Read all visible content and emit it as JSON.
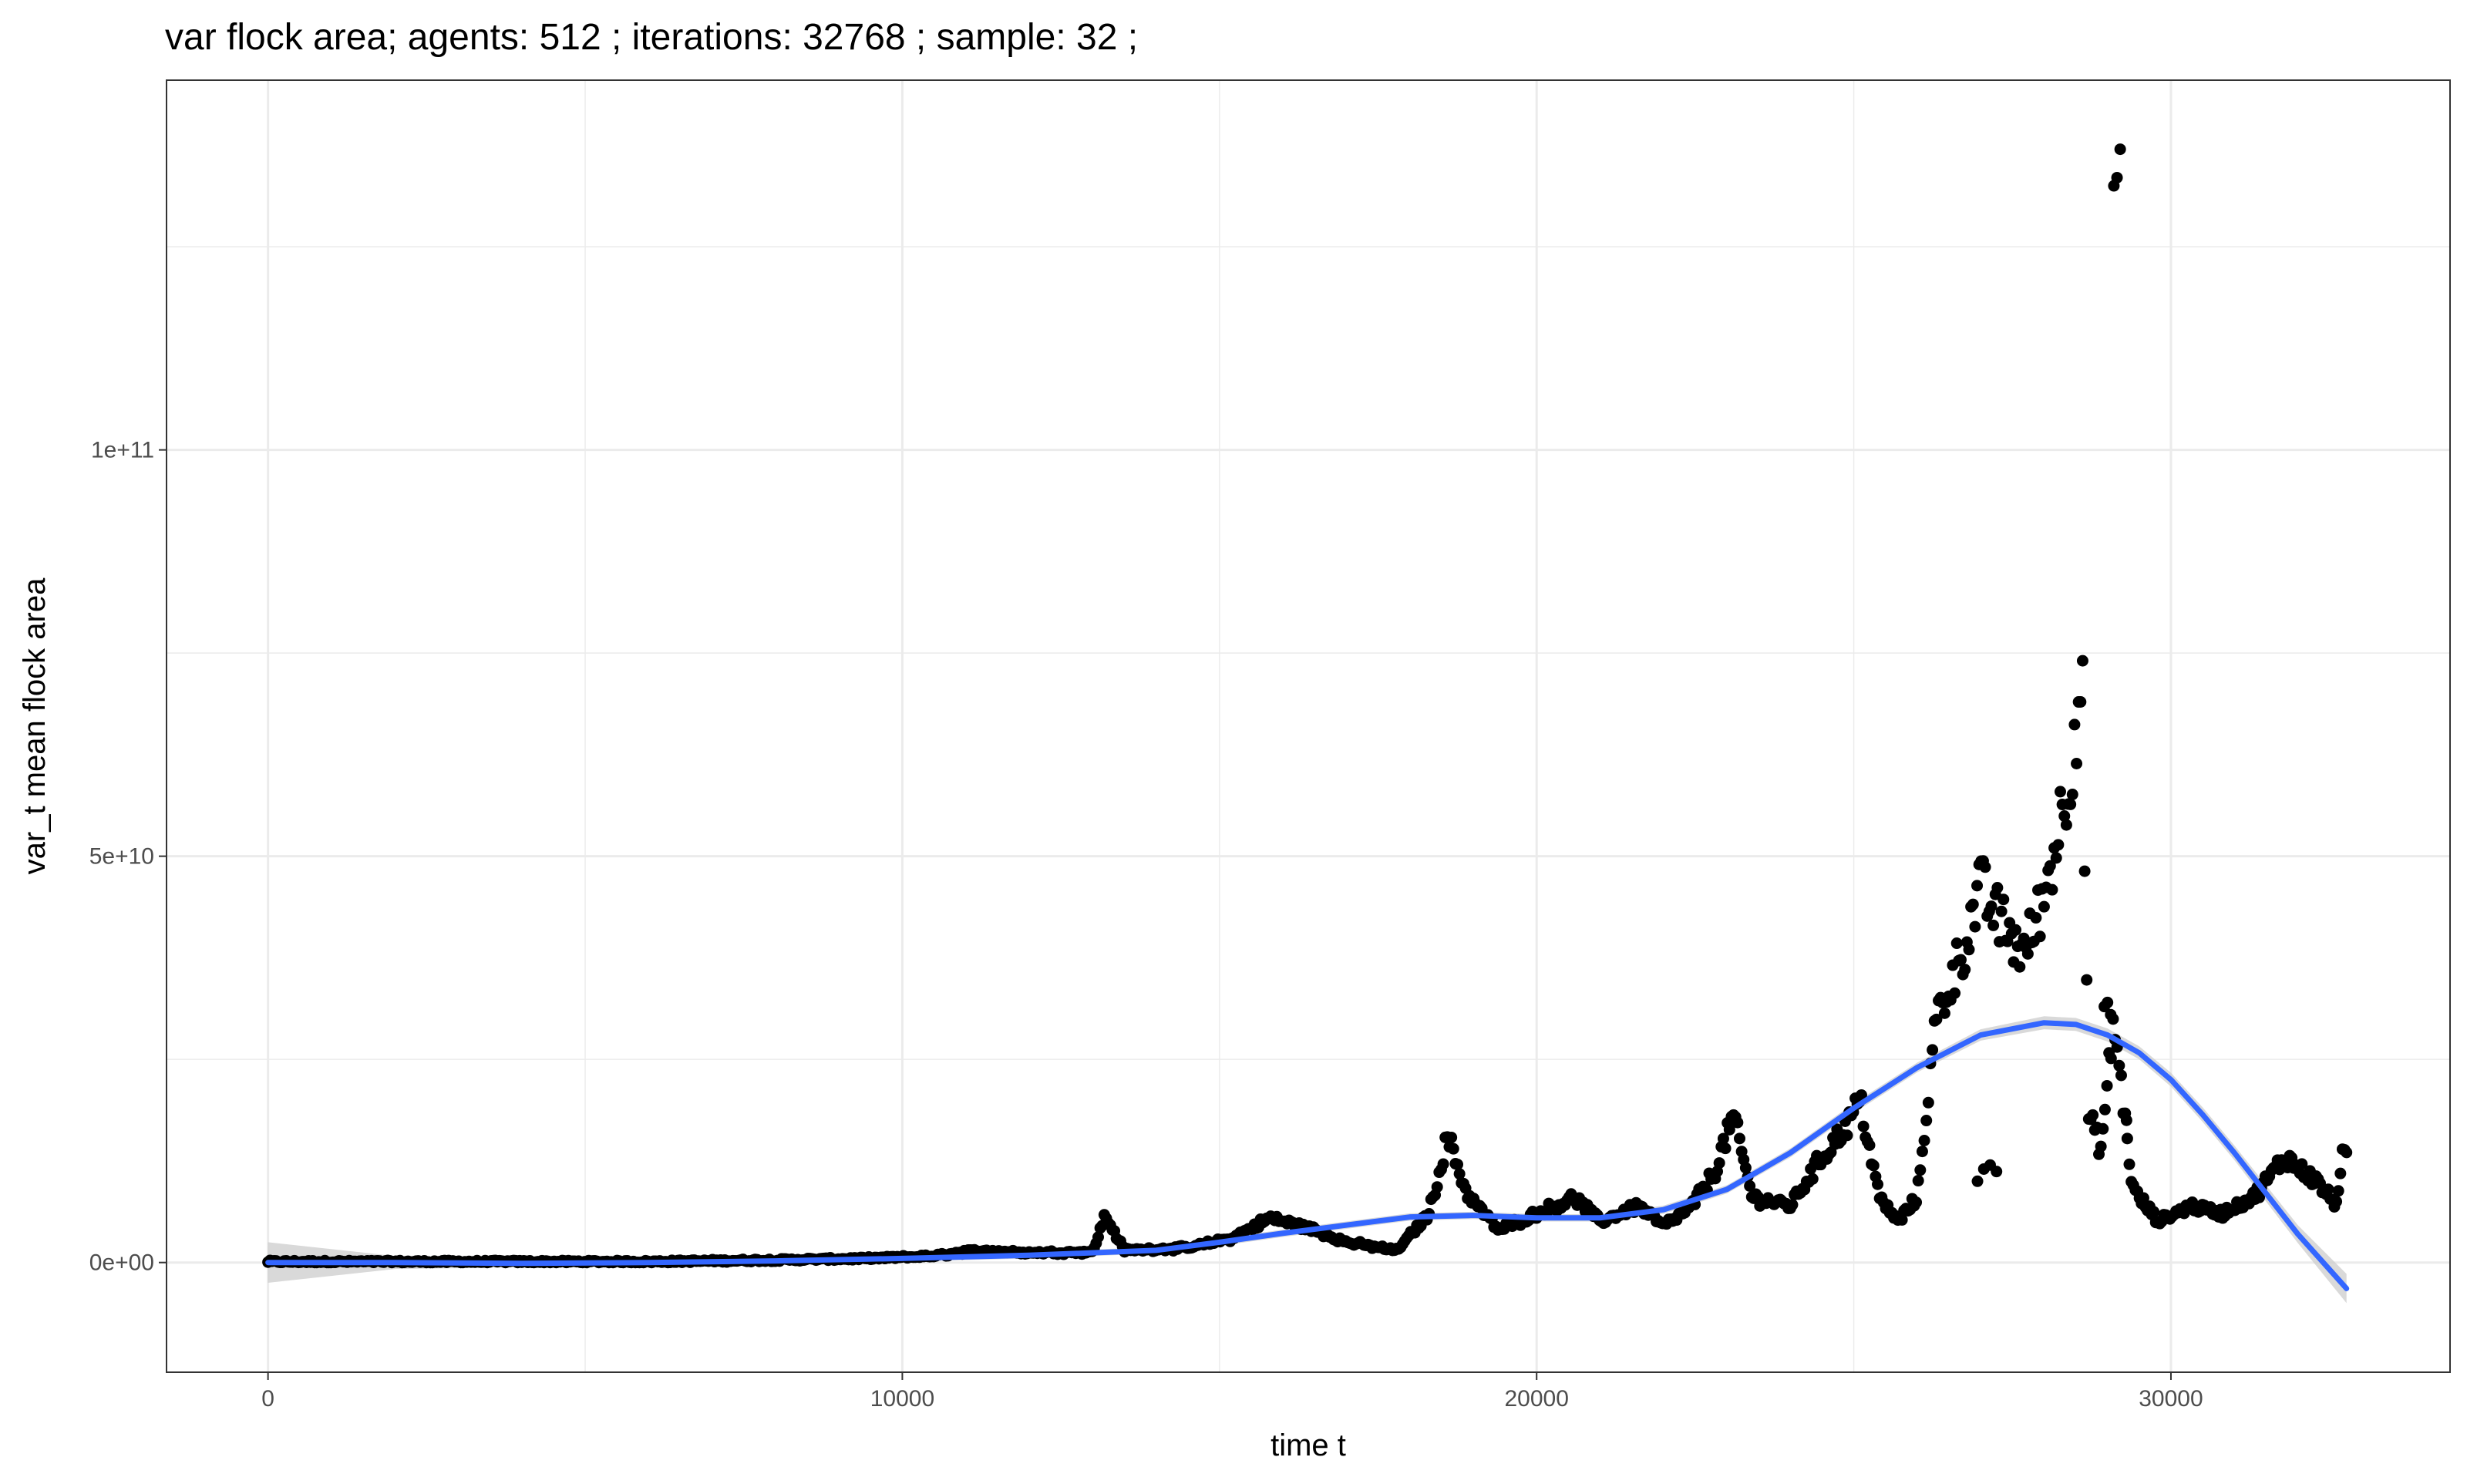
{
  "chart_data": {
    "type": "scatter",
    "title": "var flock area; agents: 512 ; iterations: 32768 ; sample: 32 ;",
    "xlabel": "time t",
    "ylabel": "var_t mean flock area",
    "xlim": [
      -1600,
      34400
    ],
    "ylim": [
      -13500000000,
      145500000000
    ],
    "x_ticks": [
      0,
      10000,
      20000,
      30000
    ],
    "x_tick_labels": [
      "0",
      "10000",
      "20000",
      "30000"
    ],
    "y_ticks": [
      0,
      50000000000,
      100000000000
    ],
    "y_tick_labels": [
      "0e+00",
      "5e+10",
      "1e+11"
    ],
    "x_minor_ticks": [
      5000,
      15000,
      25000
    ],
    "y_minor_ticks": [
      25000000000,
      75000000000,
      125000000000
    ],
    "grid": true,
    "legend": "none",
    "colors": {
      "points": "#000000",
      "smooth_line": "#3366ff",
      "confidence_band": "#cccccc",
      "grid": "#ebebeb",
      "panel_border": "#333333"
    },
    "anchors": [
      [
        0,
        100000000
      ],
      [
        2000,
        100000000
      ],
      [
        4000,
        100000000
      ],
      [
        6000,
        100000000
      ],
      [
        8000,
        300000000
      ],
      [
        9500,
        500000000
      ],
      [
        10500,
        800000000
      ],
      [
        11200,
        1500000000
      ],
      [
        12000,
        1200000000
      ],
      [
        13000,
        1300000000
      ],
      [
        13200,
        5800000000
      ],
      [
        13500,
        1500000000
      ],
      [
        14500,
        1800000000
      ],
      [
        15200,
        3000000000
      ],
      [
        15800,
        5500000000
      ],
      [
        16500,
        4000000000
      ],
      [
        17000,
        2500000000
      ],
      [
        17800,
        1500000000
      ],
      [
        18300,
        6000000000
      ],
      [
        18600,
        15500000000
      ],
      [
        18900,
        8500000000
      ],
      [
        19400,
        4000000000
      ],
      [
        20000,
        6000000000
      ],
      [
        20600,
        8000000000
      ],
      [
        21000,
        5000000000
      ],
      [
        21600,
        7000000000
      ],
      [
        22000,
        4500000000
      ],
      [
        22400,
        6500000000
      ],
      [
        22800,
        11000000000
      ],
      [
        23100,
        18000000000
      ],
      [
        23400,
        8000000000
      ],
      [
        24000,
        7000000000
      ],
      [
        24500,
        13000000000
      ],
      [
        24900,
        17000000000
      ],
      [
        25100,
        20000000000
      ],
      [
        25400,
        8000000000
      ],
      [
        25700,
        5000000000
      ],
      [
        26000,
        8000000000
      ],
      [
        26300,
        30000000000
      ],
      [
        26700,
        38000000000
      ],
      [
        27000,
        46000000000
      ],
      [
        27300,
        42000000000
      ],
      [
        27700,
        38000000000
      ],
      [
        28000,
        45000000000
      ],
      [
        28400,
        60000000000
      ],
      [
        28600,
        73000000000
      ],
      [
        28700,
        18000000000
      ],
      [
        28900,
        14000000000
      ],
      [
        29100,
        30000000000
      ],
      [
        29400,
        9000000000
      ],
      [
        29800,
        5000000000
      ],
      [
        30300,
        7000000000
      ],
      [
        30800,
        6000000000
      ],
      [
        31300,
        8000000000
      ],
      [
        31800,
        13000000000
      ],
      [
        32300,
        10000000000
      ],
      [
        32600,
        7000000000
      ],
      [
        32700,
        13000000000
      ]
    ],
    "outliers": [
      [
        26950,
        10000000000
      ],
      [
        27050,
        11500000000
      ],
      [
        27150,
        12000000000
      ],
      [
        27250,
        11200000000
      ],
      [
        28950,
        31500000000
      ],
      [
        29000,
        32000000000
      ],
      [
        29050,
        30500000000
      ],
      [
        29100,
        132500000000
      ],
      [
        29150,
        133500000000
      ],
      [
        29200,
        137000000000
      ],
      [
        29300,
        17500000000
      ]
    ],
    "smooth": {
      "x": [
        0,
        2000,
        4000,
        6000,
        8000,
        10000,
        12000,
        14000,
        15000,
        16000,
        17000,
        18000,
        19000,
        20000,
        21000,
        22000,
        23000,
        24000,
        25000,
        26000,
        27000,
        28000,
        28500,
        29000,
        29500,
        30000,
        30500,
        31000,
        31500,
        32000,
        32768
      ],
      "y": [
        0,
        0,
        -100000000,
        0,
        200000000,
        500000000,
        900000000,
        1500000000,
        2500000000,
        3600000000,
        4600000000,
        5600000000,
        5800000000,
        5500000000,
        5500000000,
        6500000000,
        9000000000,
        13500000000,
        19000000000,
        24000000000,
        28000000000,
        29500000000,
        29300000000,
        28000000000,
        25800000000,
        22500000000,
        18200000000,
        13500000000,
        8500000000,
        3500000000,
        -3200000000
      ],
      "band_halfwidth": [
        2500000000,
        800000000,
        500000000,
        400000000,
        400000000,
        400000000,
        400000000,
        400000000,
        450000000,
        450000000,
        450000000,
        450000000,
        450000000,
        450000000,
        450000000,
        500000000,
        500000000,
        550000000,
        600000000,
        600000000,
        700000000,
        800000000,
        800000000,
        800000000,
        800000000,
        850000000,
        900000000,
        900000000,
        1000000000,
        1100000000,
        1800000000
      ]
    }
  }
}
